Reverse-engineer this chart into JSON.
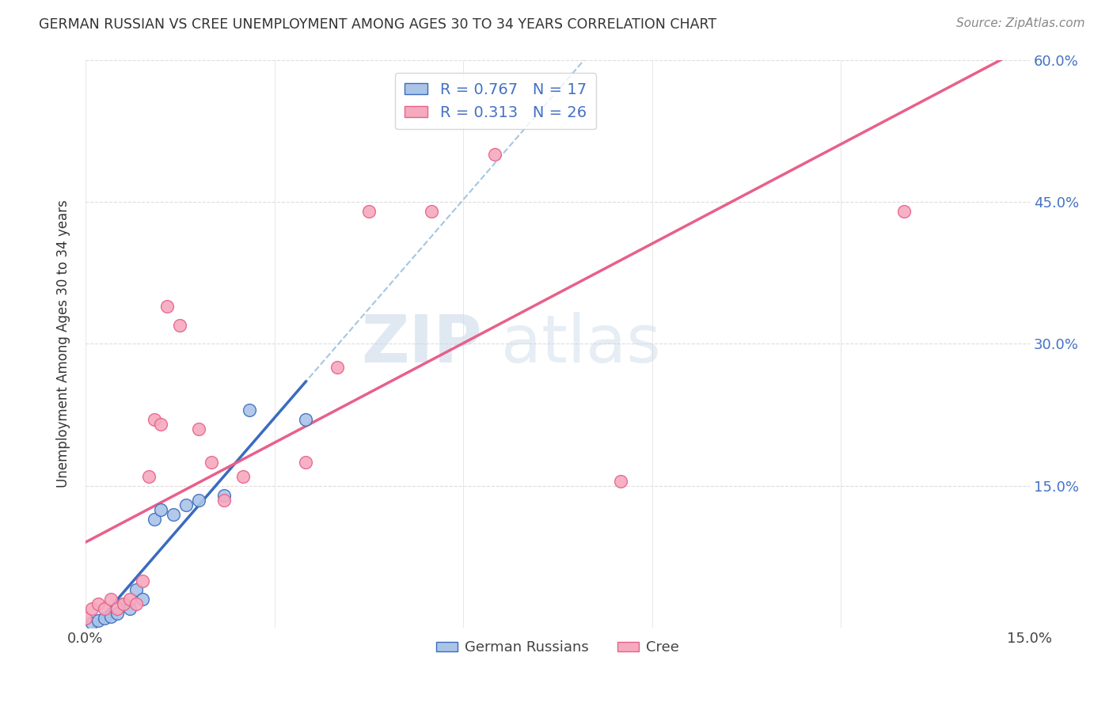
{
  "title": "GERMAN RUSSIAN VS CREE UNEMPLOYMENT AMONG AGES 30 TO 34 YEARS CORRELATION CHART",
  "source": "Source: ZipAtlas.com",
  "ylabel": "Unemployment Among Ages 30 to 34 years",
  "xlim": [
    0.0,
    0.15
  ],
  "ylim": [
    0.0,
    0.6
  ],
  "xticks": [
    0.0,
    0.03,
    0.06,
    0.09,
    0.12,
    0.15
  ],
  "xtick_labels": [
    "0.0%",
    "",
    "",
    "",
    "",
    "15.0%"
  ],
  "yticks": [
    0.0,
    0.15,
    0.3,
    0.45,
    0.6
  ],
  "ytick_labels": [
    "",
    "15.0%",
    "30.0%",
    "45.0%",
    "60.0%"
  ],
  "german_russian_x": [
    0.001,
    0.002,
    0.003,
    0.004,
    0.005,
    0.006,
    0.007,
    0.008,
    0.009,
    0.011,
    0.012,
    0.014,
    0.016,
    0.018,
    0.022,
    0.026,
    0.035
  ],
  "german_russian_y": [
    0.005,
    0.008,
    0.01,
    0.012,
    0.015,
    0.025,
    0.02,
    0.04,
    0.03,
    0.115,
    0.125,
    0.12,
    0.13,
    0.135,
    0.14,
    0.23,
    0.22
  ],
  "cree_x": [
    0.0,
    0.001,
    0.002,
    0.003,
    0.004,
    0.005,
    0.006,
    0.007,
    0.008,
    0.009,
    0.01,
    0.011,
    0.012,
    0.013,
    0.015,
    0.018,
    0.02,
    0.022,
    0.025,
    0.035,
    0.04,
    0.045,
    0.055,
    0.065,
    0.085,
    0.13
  ],
  "cree_y": [
    0.01,
    0.02,
    0.025,
    0.02,
    0.03,
    0.02,
    0.025,
    0.03,
    0.025,
    0.05,
    0.16,
    0.22,
    0.215,
    0.34,
    0.32,
    0.21,
    0.175,
    0.135,
    0.16,
    0.175,
    0.275,
    0.44,
    0.44,
    0.5,
    0.155,
    0.44
  ],
  "german_russian_color": "#aac4e8",
  "cree_color": "#f5aabe",
  "german_russian_line_color": "#3a6bbf",
  "cree_line_color": "#e8608a",
  "dashed_line_color": "#90b8d8",
  "R_german": 0.767,
  "N_german": 17,
  "R_cree": 0.313,
  "N_cree": 26,
  "watermark_zip": "ZIP",
  "watermark_atlas": "atlas",
  "background_color": "#ffffff",
  "grid_color": "#dddddd"
}
